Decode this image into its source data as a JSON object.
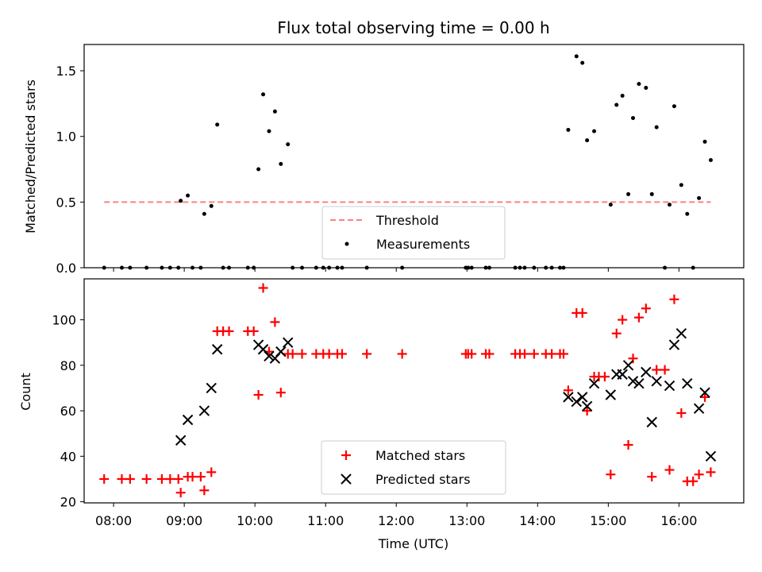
{
  "chart_data": [
    {
      "type": "scatter",
      "title": "Flux total observing time = 0.00 h",
      "xlabel": "",
      "ylabel": "Matched/Predicted stars",
      "ylim": [
        0,
        1.7
      ],
      "yticks": [
        0.0,
        0.5,
        1.0,
        1.5
      ],
      "ytick_labels": [
        "0.0",
        "0.5",
        "1.0",
        "1.5"
      ],
      "xlim": [
        "07:35",
        "16:55"
      ],
      "grid": false,
      "legend_position": "bottom-center",
      "threshold": {
        "name": "Threshold",
        "value": 0.5,
        "x": [
          "07:52",
          "16:27"
        ],
        "color": "#ff8080",
        "style": "dashed"
      },
      "series": [
        {
          "name": "Measurements",
          "marker": "dot",
          "color": "#000000",
          "points": [
            [
              "07:52",
              0
            ],
            [
              "08:07",
              0
            ],
            [
              "08:14",
              0
            ],
            [
              "08:28",
              0
            ],
            [
              "08:41",
              0
            ],
            [
              "08:48",
              0
            ],
            [
              "08:55",
              0
            ],
            [
              "08:57",
              0.51
            ],
            [
              "09:03",
              0.55
            ],
            [
              "09:07",
              0
            ],
            [
              "09:14",
              0
            ],
            [
              "09:17",
              0.41
            ],
            [
              "09:23",
              0.47
            ],
            [
              "09:28",
              1.09
            ],
            [
              "09:33",
              0
            ],
            [
              "09:38",
              0
            ],
            [
              "09:54",
              0
            ],
            [
              "09:59",
              0
            ],
            [
              "10:03",
              0.75
            ],
            [
              "10:07",
              1.32
            ],
            [
              "10:12",
              1.04
            ],
            [
              "10:17",
              1.19
            ],
            [
              "10:22",
              0.79
            ],
            [
              "10:28",
              0.94
            ],
            [
              "10:32",
              0
            ],
            [
              "10:40",
              0
            ],
            [
              "10:52",
              0
            ],
            [
              "10:58",
              0
            ],
            [
              "11:03",
              0
            ],
            [
              "11:10",
              0
            ],
            [
              "11:14",
              0
            ],
            [
              "11:35",
              0
            ],
            [
              "12:05",
              0
            ],
            [
              "12:59",
              0
            ],
            [
              "13:01",
              0
            ],
            [
              "13:04",
              0
            ],
            [
              "13:16",
              0
            ],
            [
              "13:19",
              0
            ],
            [
              "13:41",
              0
            ],
            [
              "13:45",
              0
            ],
            [
              "13:49",
              0
            ],
            [
              "13:57",
              0
            ],
            [
              "14:07",
              0
            ],
            [
              "14:12",
              0
            ],
            [
              "14:19",
              0
            ],
            [
              "14:22",
              0
            ],
            [
              "14:26",
              1.05
            ],
            [
              "14:33",
              1.61
            ],
            [
              "14:38",
              1.56
            ],
            [
              "14:42",
              0.97
            ],
            [
              "14:48",
              1.04
            ],
            [
              "15:02",
              0.48
            ],
            [
              "15:07",
              1.24
            ],
            [
              "15:12",
              1.31
            ],
            [
              "15:17",
              0.56
            ],
            [
              "15:21",
              1.14
            ],
            [
              "15:26",
              1.4
            ],
            [
              "15:32",
              1.37
            ],
            [
              "15:37",
              0.56
            ],
            [
              "15:41",
              1.07
            ],
            [
              "15:48",
              0
            ],
            [
              "15:52",
              0.48
            ],
            [
              "15:56",
              1.23
            ],
            [
              "16:02",
              0.63
            ],
            [
              "16:07",
              0.41
            ],
            [
              "16:12",
              0
            ],
            [
              "16:17",
              0.53
            ],
            [
              "16:22",
              0.96
            ],
            [
              "16:27",
              0.82
            ]
          ]
        }
      ]
    },
    {
      "type": "scatter",
      "title": "",
      "xlabel": "Time (UTC)",
      "ylabel": "Count",
      "ylim": [
        19.5,
        118
      ],
      "yticks": [
        20,
        40,
        60,
        80,
        100
      ],
      "ytick_labels": [
        "20",
        "40",
        "60",
        "80",
        "100"
      ],
      "xlim": [
        "07:35",
        "16:55"
      ],
      "xticks": [
        "08:00",
        "09:00",
        "10:00",
        "11:00",
        "12:00",
        "13:00",
        "14:00",
        "15:00",
        "16:00"
      ],
      "xtick_labels": [
        "08:00",
        "09:00",
        "10:00",
        "11:00",
        "12:00",
        "13:00",
        "14:00",
        "15:00",
        "16:00"
      ],
      "grid": false,
      "legend_position": "bottom-center",
      "series": [
        {
          "name": "Matched stars",
          "marker": "plus",
          "color": "#ff0000",
          "points": [
            [
              "07:52",
              30
            ],
            [
              "08:07",
              30
            ],
            [
              "08:14",
              30
            ],
            [
              "08:28",
              30
            ],
            [
              "08:41",
              30
            ],
            [
              "08:48",
              30
            ],
            [
              "08:55",
              30
            ],
            [
              "08:57",
              24
            ],
            [
              "09:03",
              31
            ],
            [
              "09:07",
              31
            ],
            [
              "09:14",
              31
            ],
            [
              "09:17",
              25
            ],
            [
              "09:23",
              33
            ],
            [
              "09:28",
              95
            ],
            [
              "09:33",
              95
            ],
            [
              "09:38",
              95
            ],
            [
              "09:54",
              95
            ],
            [
              "09:59",
              95
            ],
            [
              "10:03",
              67
            ],
            [
              "10:07",
              114
            ],
            [
              "10:12",
              86
            ],
            [
              "10:17",
              99
            ],
            [
              "10:22",
              68
            ],
            [
              "10:28",
              85
            ],
            [
              "10:32",
              85
            ],
            [
              "10:40",
              85
            ],
            [
              "10:52",
              85
            ],
            [
              "10:58",
              85
            ],
            [
              "11:03",
              85
            ],
            [
              "11:10",
              85
            ],
            [
              "11:14",
              85
            ],
            [
              "11:35",
              85
            ],
            [
              "12:05",
              85
            ],
            [
              "12:59",
              85
            ],
            [
              "13:01",
              85
            ],
            [
              "13:04",
              85
            ],
            [
              "13:16",
              85
            ],
            [
              "13:19",
              85
            ],
            [
              "13:41",
              85
            ],
            [
              "13:45",
              85
            ],
            [
              "13:49",
              85
            ],
            [
              "13:57",
              85
            ],
            [
              "14:07",
              85
            ],
            [
              "14:12",
              85
            ],
            [
              "14:19",
              85
            ],
            [
              "14:22",
              85
            ],
            [
              "14:26",
              69
            ],
            [
              "14:33",
              103
            ],
            [
              "14:38",
              103
            ],
            [
              "14:42",
              60
            ],
            [
              "14:48",
              75
            ],
            [
              "14:52",
              75
            ],
            [
              "14:57",
              75
            ],
            [
              "15:02",
              32
            ],
            [
              "15:07",
              94
            ],
            [
              "15:12",
              100
            ],
            [
              "15:17",
              45
            ],
            [
              "15:21",
              83
            ],
            [
              "15:26",
              101
            ],
            [
              "15:32",
              105
            ],
            [
              "15:37",
              31
            ],
            [
              "15:41",
              78
            ],
            [
              "15:48",
              78
            ],
            [
              "15:52",
              34
            ],
            [
              "15:56",
              109
            ],
            [
              "16:02",
              59
            ],
            [
              "16:07",
              29
            ],
            [
              "16:12",
              29
            ],
            [
              "16:17",
              32
            ],
            [
              "16:22",
              66
            ],
            [
              "16:27",
              33
            ]
          ]
        },
        {
          "name": "Predicted stars",
          "marker": "x",
          "color": "#000000",
          "points": [
            [
              "08:57",
              47
            ],
            [
              "09:03",
              56
            ],
            [
              "09:17",
              60
            ],
            [
              "09:23",
              70
            ],
            [
              "09:28",
              87
            ],
            [
              "10:03",
              89
            ],
            [
              "10:07",
              87
            ],
            [
              "10:12",
              84
            ],
            [
              "10:17",
              83
            ],
            [
              "10:22",
              86
            ],
            [
              "10:28",
              90
            ],
            [
              "14:26",
              66
            ],
            [
              "14:33",
              64
            ],
            [
              "14:38",
              66
            ],
            [
              "14:42",
              62
            ],
            [
              "14:48",
              72
            ],
            [
              "15:02",
              67
            ],
            [
              "15:07",
              76
            ],
            [
              "15:12",
              76
            ],
            [
              "15:17",
              80
            ],
            [
              "15:21",
              73
            ],
            [
              "15:26",
              72
            ],
            [
              "15:32",
              77
            ],
            [
              "15:37",
              55
            ],
            [
              "15:41",
              73
            ],
            [
              "15:52",
              71
            ],
            [
              "15:56",
              89
            ],
            [
              "16:02",
              94
            ],
            [
              "16:07",
              72
            ],
            [
              "16:17",
              61
            ],
            [
              "16:22",
              68
            ],
            [
              "16:27",
              40
            ]
          ]
        }
      ]
    }
  ]
}
